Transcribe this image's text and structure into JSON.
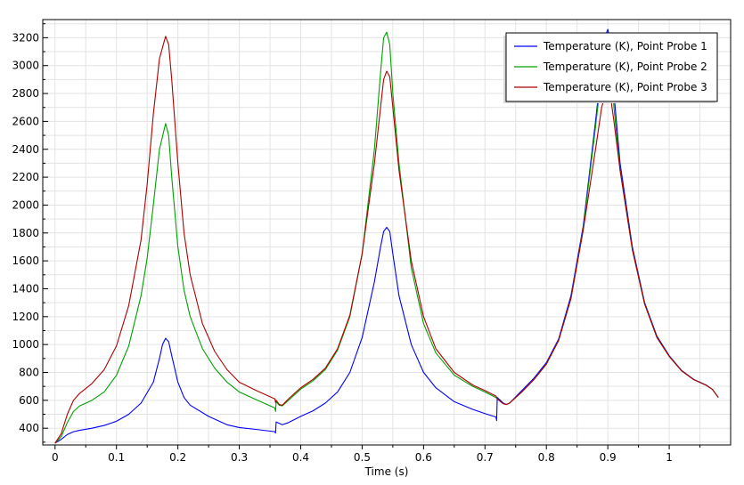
{
  "chart_data": {
    "type": "line",
    "title": "",
    "xlabel": "Time (s)",
    "ylabel": "",
    "xlim": [
      -0.02,
      1.1
    ],
    "ylim": [
      280,
      3330
    ],
    "x_ticks": [
      0,
      0.1,
      0.2,
      0.3,
      0.4,
      0.5,
      0.6,
      0.7,
      0.8,
      0.9,
      1
    ],
    "x_tick_labels": [
      "0",
      "0.1",
      "0.2",
      "0.3",
      "0.4",
      "0.5",
      "0.6",
      "0.7",
      "0.8",
      "0.9",
      "1"
    ],
    "y_ticks": [
      400,
      600,
      800,
      1000,
      1200,
      1400,
      1600,
      1800,
      2000,
      2200,
      2400,
      2600,
      2800,
      3000,
      3200
    ],
    "y_tick_labels": [
      "400",
      "600",
      "800",
      "1000",
      "1200",
      "1400",
      "1600",
      "1800",
      "2000",
      "2200",
      "2400",
      "2600",
      "2800",
      "3000",
      "3200"
    ],
    "grid": true,
    "legend_position": "top-right",
    "series": [
      {
        "name": "Temperature (K), Point Probe 1",
        "color": "#0000ff",
        "points": [
          [
            0,
            293
          ],
          [
            0.01,
            320
          ],
          [
            0.02,
            355
          ],
          [
            0.03,
            375
          ],
          [
            0.04,
            385
          ],
          [
            0.06,
            400
          ],
          [
            0.08,
            420
          ],
          [
            0.1,
            450
          ],
          [
            0.12,
            500
          ],
          [
            0.14,
            580
          ],
          [
            0.16,
            730
          ],
          [
            0.17,
            900
          ],
          [
            0.175,
            1000
          ],
          [
            0.18,
            1045
          ],
          [
            0.185,
            1020
          ],
          [
            0.19,
            920
          ],
          [
            0.2,
            730
          ],
          [
            0.21,
            620
          ],
          [
            0.22,
            565
          ],
          [
            0.25,
            485
          ],
          [
            0.28,
            425
          ],
          [
            0.3,
            405
          ],
          [
            0.33,
            390
          ],
          [
            0.358,
            375
          ],
          [
            0.359,
            365
          ],
          [
            0.36,
            445
          ],
          [
            0.365,
            435
          ],
          [
            0.37,
            425
          ],
          [
            0.38,
            440
          ],
          [
            0.4,
            485
          ],
          [
            0.42,
            525
          ],
          [
            0.44,
            580
          ],
          [
            0.46,
            660
          ],
          [
            0.48,
            800
          ],
          [
            0.5,
            1050
          ],
          [
            0.52,
            1450
          ],
          [
            0.53,
            1700
          ],
          [
            0.535,
            1810
          ],
          [
            0.54,
            1840
          ],
          [
            0.545,
            1810
          ],
          [
            0.55,
            1650
          ],
          [
            0.56,
            1350
          ],
          [
            0.58,
            1000
          ],
          [
            0.6,
            800
          ],
          [
            0.62,
            690
          ],
          [
            0.65,
            590
          ],
          [
            0.68,
            535
          ],
          [
            0.7,
            505
          ],
          [
            0.718,
            480
          ],
          [
            0.719,
            455
          ],
          [
            0.72,
            620
          ],
          [
            0.73,
            580
          ],
          [
            0.735,
            570
          ],
          [
            0.74,
            580
          ],
          [
            0.76,
            670
          ],
          [
            0.78,
            760
          ],
          [
            0.8,
            870
          ],
          [
            0.82,
            1040
          ],
          [
            0.84,
            1350
          ],
          [
            0.86,
            1850
          ],
          [
            0.88,
            2600
          ],
          [
            0.89,
            3000
          ],
          [
            0.895,
            3200
          ],
          [
            0.9,
            3260
          ],
          [
            0.905,
            3150
          ],
          [
            0.91,
            2800
          ],
          [
            0.92,
            2300
          ],
          [
            0.94,
            1700
          ],
          [
            0.96,
            1300
          ],
          [
            0.98,
            1060
          ],
          [
            1.0,
            920
          ],
          [
            1.02,
            815
          ],
          [
            1.04,
            750
          ],
          [
            1.06,
            710
          ],
          [
            1.07,
            680
          ],
          [
            1.08,
            620
          ]
        ]
      },
      {
        "name": "Temperature (K), Point Probe 2",
        "color": "#00a000",
        "points": [
          [
            0,
            293
          ],
          [
            0.01,
            340
          ],
          [
            0.02,
            440
          ],
          [
            0.03,
            520
          ],
          [
            0.04,
            560
          ],
          [
            0.06,
            600
          ],
          [
            0.08,
            660
          ],
          [
            0.1,
            780
          ],
          [
            0.12,
            990
          ],
          [
            0.14,
            1350
          ],
          [
            0.15,
            1620
          ],
          [
            0.16,
            2000
          ],
          [
            0.17,
            2400
          ],
          [
            0.18,
            2585
          ],
          [
            0.185,
            2500
          ],
          [
            0.19,
            2200
          ],
          [
            0.2,
            1700
          ],
          [
            0.21,
            1390
          ],
          [
            0.22,
            1200
          ],
          [
            0.24,
            970
          ],
          [
            0.26,
            830
          ],
          [
            0.28,
            730
          ],
          [
            0.3,
            660
          ],
          [
            0.33,
            600
          ],
          [
            0.358,
            545
          ],
          [
            0.359,
            520
          ],
          [
            0.36,
            590
          ],
          [
            0.365,
            565
          ],
          [
            0.37,
            560
          ],
          [
            0.38,
            600
          ],
          [
            0.4,
            680
          ],
          [
            0.42,
            740
          ],
          [
            0.44,
            820
          ],
          [
            0.46,
            960
          ],
          [
            0.48,
            1200
          ],
          [
            0.5,
            1650
          ],
          [
            0.52,
            2400
          ],
          [
            0.53,
            2950
          ],
          [
            0.535,
            3200
          ],
          [
            0.54,
            3240
          ],
          [
            0.545,
            3150
          ],
          [
            0.55,
            2800
          ],
          [
            0.56,
            2300
          ],
          [
            0.58,
            1550
          ],
          [
            0.6,
            1150
          ],
          [
            0.62,
            940
          ],
          [
            0.65,
            780
          ],
          [
            0.68,
            700
          ],
          [
            0.7,
            660
          ],
          [
            0.718,
            620
          ],
          [
            0.72,
            610
          ],
          [
            0.73,
            575
          ],
          [
            0.735,
            570
          ],
          [
            0.74,
            580
          ],
          [
            0.76,
            660
          ],
          [
            0.78,
            750
          ],
          [
            0.8,
            860
          ],
          [
            0.82,
            1030
          ],
          [
            0.84,
            1330
          ],
          [
            0.86,
            1830
          ],
          [
            0.88,
            2560
          ],
          [
            0.89,
            2950
          ],
          [
            0.895,
            3120
          ],
          [
            0.9,
            3150
          ],
          [
            0.905,
            3020
          ],
          [
            0.91,
            2700
          ],
          [
            0.92,
            2250
          ],
          [
            0.94,
            1680
          ],
          [
            0.96,
            1290
          ],
          [
            0.98,
            1050
          ],
          [
            1.0,
            915
          ],
          [
            1.02,
            812
          ],
          [
            1.04,
            748
          ],
          [
            1.06,
            708
          ],
          [
            1.07,
            680
          ],
          [
            1.08,
            620
          ]
        ]
      },
      {
        "name": "Temperature (K), Point Probe 3",
        "color": "#b00000",
        "points": [
          [
            0,
            293
          ],
          [
            0.01,
            360
          ],
          [
            0.02,
            500
          ],
          [
            0.03,
            600
          ],
          [
            0.04,
            650
          ],
          [
            0.06,
            720
          ],
          [
            0.08,
            820
          ],
          [
            0.1,
            990
          ],
          [
            0.12,
            1280
          ],
          [
            0.14,
            1750
          ],
          [
            0.15,
            2150
          ],
          [
            0.16,
            2650
          ],
          [
            0.17,
            3050
          ],
          [
            0.18,
            3210
          ],
          [
            0.185,
            3150
          ],
          [
            0.19,
            2900
          ],
          [
            0.2,
            2300
          ],
          [
            0.21,
            1800
          ],
          [
            0.22,
            1500
          ],
          [
            0.24,
            1150
          ],
          [
            0.26,
            950
          ],
          [
            0.28,
            820
          ],
          [
            0.3,
            730
          ],
          [
            0.33,
            665
          ],
          [
            0.358,
            610
          ],
          [
            0.359,
            585
          ],
          [
            0.36,
            600
          ],
          [
            0.365,
            570
          ],
          [
            0.37,
            565
          ],
          [
            0.38,
            610
          ],
          [
            0.4,
            690
          ],
          [
            0.42,
            750
          ],
          [
            0.44,
            830
          ],
          [
            0.46,
            970
          ],
          [
            0.48,
            1210
          ],
          [
            0.5,
            1650
          ],
          [
            0.52,
            2300
          ],
          [
            0.53,
            2700
          ],
          [
            0.535,
            2900
          ],
          [
            0.54,
            2960
          ],
          [
            0.545,
            2920
          ],
          [
            0.55,
            2700
          ],
          [
            0.56,
            2250
          ],
          [
            0.58,
            1600
          ],
          [
            0.6,
            1200
          ],
          [
            0.62,
            970
          ],
          [
            0.65,
            800
          ],
          [
            0.68,
            710
          ],
          [
            0.7,
            670
          ],
          [
            0.718,
            630
          ],
          [
            0.72,
            610
          ],
          [
            0.73,
            575
          ],
          [
            0.735,
            570
          ],
          [
            0.74,
            580
          ],
          [
            0.76,
            660
          ],
          [
            0.78,
            750
          ],
          [
            0.8,
            860
          ],
          [
            0.82,
            1030
          ],
          [
            0.84,
            1330
          ],
          [
            0.86,
            1820
          ],
          [
            0.88,
            2400
          ],
          [
            0.89,
            2700
          ],
          [
            0.895,
            2780
          ],
          [
            0.9,
            2790
          ],
          [
            0.905,
            2760
          ],
          [
            0.91,
            2600
          ],
          [
            0.92,
            2250
          ],
          [
            0.94,
            1680
          ],
          [
            0.96,
            1290
          ],
          [
            0.98,
            1050
          ],
          [
            1.0,
            915
          ],
          [
            1.02,
            812
          ],
          [
            1.04,
            748
          ],
          [
            1.06,
            708
          ],
          [
            1.07,
            680
          ],
          [
            1.08,
            620
          ]
        ]
      }
    ]
  }
}
